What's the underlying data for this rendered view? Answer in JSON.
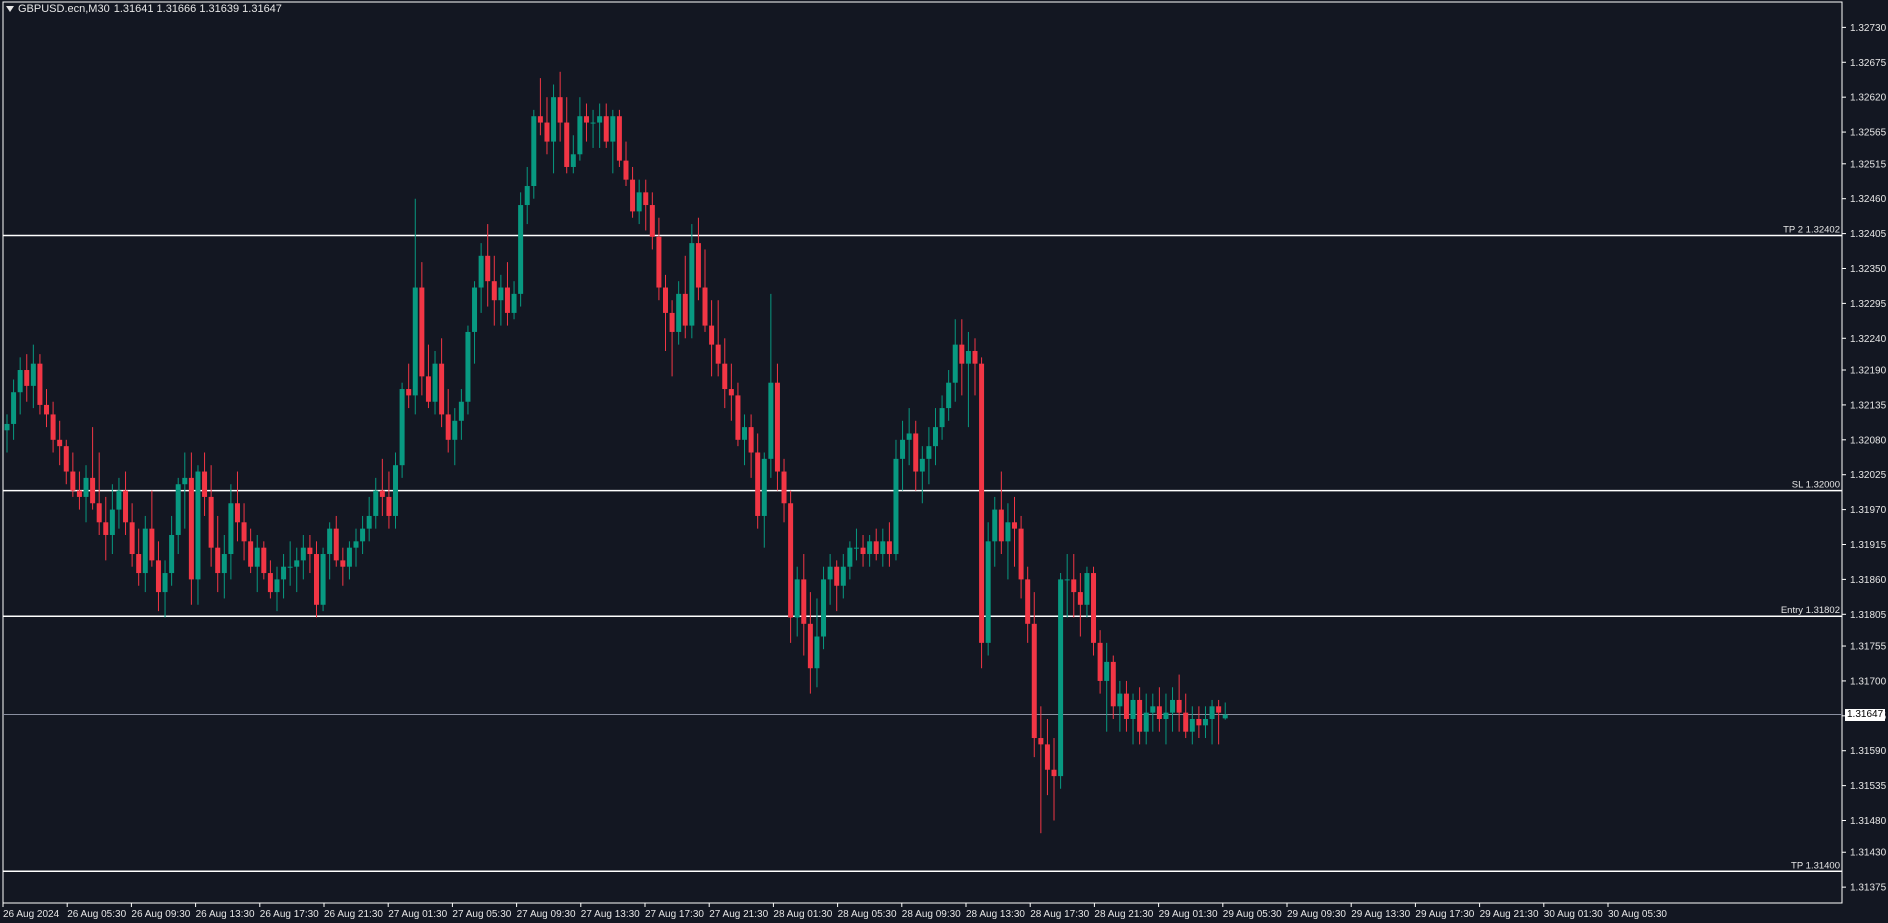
{
  "header": {
    "symbol": "GBPUSD.ecn,M30",
    "ohlc": "1.31641 1.31666 1.31639 1.31647"
  },
  "current_price_label": "1.31647",
  "colors": {
    "background": "#131722",
    "axis": "#ffffff",
    "bull": "#089981",
    "bear": "#f23645",
    "level_line": "#ffffff",
    "text": "#e6e6e6"
  },
  "chart_data": {
    "type": "candlestick",
    "symbol": "GBPUSD.ecn",
    "timeframe": "M30",
    "ylim": [
      1.3135,
      1.3277
    ],
    "y_ticks": [
      "1.32730",
      "1.32675",
      "1.32620",
      "1.32565",
      "1.32515",
      "1.32460",
      "1.32405",
      "1.32350",
      "1.32295",
      "1.32240",
      "1.32190",
      "1.32135",
      "1.32080",
      "1.32025",
      "1.31970",
      "1.31915",
      "1.31860",
      "1.31805",
      "1.31755",
      "1.31700",
      "1.31645",
      "1.31590",
      "1.31535",
      "1.31480",
      "1.31430",
      "1.31375"
    ],
    "x_ticks": [
      "26 Aug 2024",
      "26 Aug 05:30",
      "26 Aug 09:30",
      "26 Aug 13:30",
      "26 Aug 17:30",
      "26 Aug 21:30",
      "27 Aug 01:30",
      "27 Aug 05:30",
      "27 Aug 09:30",
      "27 Aug 13:30",
      "27 Aug 17:30",
      "27 Aug 21:30",
      "28 Aug 01:30",
      "28 Aug 05:30",
      "28 Aug 09:30",
      "28 Aug 13:30",
      "28 Aug 17:30",
      "28 Aug 21:30",
      "29 Aug 01:30",
      "29 Aug 05:30",
      "29 Aug 09:30",
      "29 Aug 13:30",
      "29 Aug 17:30",
      "29 Aug 21:30",
      "30 Aug 01:30",
      "30 Aug 05:30"
    ],
    "levels": [
      {
        "label": "TP 2 1.32402",
        "price": 1.32402
      },
      {
        "label": "SL 1.32000",
        "price": 1.32
      },
      {
        "label": "Entry 1.31802",
        "price": 1.31802
      },
      {
        "label": "TP 1.31400",
        "price": 1.314
      }
    ],
    "current_price": 1.31647,
    "ohlc": [
      [
        1.32095,
        1.3212,
        1.3206,
        1.32105
      ],
      [
        1.32105,
        1.32175,
        1.3208,
        1.32155
      ],
      [
        1.32155,
        1.3221,
        1.3212,
        1.3219
      ],
      [
        1.3219,
        1.32215,
        1.3214,
        1.32165
      ],
      [
        1.32165,
        1.3223,
        1.3213,
        1.322
      ],
      [
        1.322,
        1.32215,
        1.3212,
        1.32135
      ],
      [
        1.32135,
        1.3216,
        1.321,
        1.3212
      ],
      [
        1.3212,
        1.3214,
        1.3206,
        1.3208
      ],
      [
        1.3208,
        1.3211,
        1.3204,
        1.3207
      ],
      [
        1.3207,
        1.3208,
        1.3201,
        1.3203
      ],
      [
        1.3203,
        1.3206,
        1.3199,
        1.32
      ],
      [
        1.32,
        1.3203,
        1.3197,
        1.3199
      ],
      [
        1.3199,
        1.3204,
        1.3195,
        1.3202
      ],
      [
        1.3202,
        1.321,
        1.3197,
        1.3198
      ],
      [
        1.3198,
        1.3206,
        1.3193,
        1.3195
      ],
      [
        1.3195,
        1.3199,
        1.3189,
        1.3193
      ],
      [
        1.3193,
        1.3201,
        1.319,
        1.3197
      ],
      [
        1.3197,
        1.3202,
        1.3194,
        1.32
      ],
      [
        1.32,
        1.3203,
        1.3193,
        1.3195
      ],
      [
        1.3195,
        1.3198,
        1.3188,
        1.319
      ],
      [
        1.319,
        1.3194,
        1.3185,
        1.3187
      ],
      [
        1.3187,
        1.3196,
        1.3184,
        1.3194
      ],
      [
        1.3194,
        1.32,
        1.3188,
        1.3189
      ],
      [
        1.3189,
        1.3192,
        1.3181,
        1.3184
      ],
      [
        1.3184,
        1.3189,
        1.318,
        1.3187
      ],
      [
        1.3187,
        1.3196,
        1.3185,
        1.3193
      ],
      [
        1.3193,
        1.3202,
        1.319,
        1.3201
      ],
      [
        1.3201,
        1.3206,
        1.3194,
        1.3202
      ],
      [
        1.3202,
        1.3206,
        1.3182,
        1.3186
      ],
      [
        1.3186,
        1.3204,
        1.3182,
        1.3203
      ],
      [
        1.3203,
        1.3206,
        1.3196,
        1.3199
      ],
      [
        1.3199,
        1.3204,
        1.3188,
        1.3191
      ],
      [
        1.3191,
        1.3196,
        1.3184,
        1.3187
      ],
      [
        1.3187,
        1.3193,
        1.3183,
        1.319
      ],
      [
        1.319,
        1.3201,
        1.3186,
        1.3198
      ],
      [
        1.3198,
        1.3203,
        1.3192,
        1.3195
      ],
      [
        1.3195,
        1.3198,
        1.3189,
        1.3192
      ],
      [
        1.3192,
        1.3194,
        1.3187,
        1.3188
      ],
      [
        1.3188,
        1.3193,
        1.3184,
        1.3191
      ],
      [
        1.3191,
        1.3192,
        1.3186,
        1.3187
      ],
      [
        1.3187,
        1.3189,
        1.3183,
        1.3184
      ],
      [
        1.3184,
        1.3188,
        1.3181,
        1.3186
      ],
      [
        1.3186,
        1.319,
        1.3183,
        1.3188
      ],
      [
        1.3188,
        1.3192,
        1.3185,
        1.3188
      ],
      [
        1.3188,
        1.3191,
        1.3184,
        1.3189
      ],
      [
        1.3189,
        1.3193,
        1.3186,
        1.3191
      ],
      [
        1.3191,
        1.3193,
        1.3187,
        1.319
      ],
      [
        1.319,
        1.3192,
        1.318,
        1.3182
      ],
      [
        1.3182,
        1.3191,
        1.3181,
        1.319
      ],
      [
        1.319,
        1.3195,
        1.3186,
        1.3194
      ],
      [
        1.3194,
        1.3196,
        1.3188,
        1.3189
      ],
      [
        1.3189,
        1.3191,
        1.3185,
        1.3188
      ],
      [
        1.3188,
        1.3192,
        1.3186,
        1.3191
      ],
      [
        1.3191,
        1.3194,
        1.3188,
        1.3192
      ],
      [
        1.3192,
        1.3196,
        1.319,
        1.3194
      ],
      [
        1.3194,
        1.3199,
        1.3192,
        1.3196
      ],
      [
        1.3196,
        1.3202,
        1.3194,
        1.32
      ],
      [
        1.32,
        1.3205,
        1.3196,
        1.3199
      ],
      [
        1.3199,
        1.3203,
        1.3194,
        1.3196
      ],
      [
        1.3196,
        1.3206,
        1.3194,
        1.3204
      ],
      [
        1.3204,
        1.3217,
        1.3202,
        1.3216
      ],
      [
        1.3216,
        1.322,
        1.3213,
        1.3215
      ],
      [
        1.3215,
        1.3246,
        1.3212,
        1.3232
      ],
      [
        1.3232,
        1.3236,
        1.3215,
        1.3218
      ],
      [
        1.3218,
        1.3223,
        1.3213,
        1.3214
      ],
      [
        1.3214,
        1.3222,
        1.3212,
        1.322
      ],
      [
        1.322,
        1.3224,
        1.321,
        1.3212
      ],
      [
        1.3212,
        1.3216,
        1.3206,
        1.3208
      ],
      [
        1.3208,
        1.3213,
        1.3204,
        1.3211
      ],
      [
        1.3211,
        1.3216,
        1.3208,
        1.3214
      ],
      [
        1.3214,
        1.3226,
        1.3212,
        1.3225
      ],
      [
        1.3225,
        1.3233,
        1.322,
        1.3232
      ],
      [
        1.3232,
        1.3239,
        1.3228,
        1.3237
      ],
      [
        1.3237,
        1.3242,
        1.3229,
        1.3233
      ],
      [
        1.3233,
        1.3237,
        1.3226,
        1.323
      ],
      [
        1.323,
        1.3234,
        1.3226,
        1.3232
      ],
      [
        1.3232,
        1.3236,
        1.3226,
        1.3228
      ],
      [
        1.3228,
        1.3233,
        1.3227,
        1.3231
      ],
      [
        1.3231,
        1.3247,
        1.3229,
        1.3245
      ],
      [
        1.3245,
        1.3251,
        1.3242,
        1.3248
      ],
      [
        1.3248,
        1.326,
        1.3246,
        1.3259
      ],
      [
        1.3259,
        1.3265,
        1.3256,
        1.3258
      ],
      [
        1.3258,
        1.3262,
        1.3253,
        1.3255
      ],
      [
        1.3255,
        1.3264,
        1.325,
        1.3262
      ],
      [
        1.3262,
        1.3266,
        1.3255,
        1.3258
      ],
      [
        1.3258,
        1.3262,
        1.325,
        1.3251
      ],
      [
        1.3251,
        1.3256,
        1.325,
        1.3253
      ],
      [
        1.3253,
        1.3262,
        1.3252,
        1.3259
      ],
      [
        1.3259,
        1.3261,
        1.3255,
        1.3258
      ],
      [
        1.3258,
        1.326,
        1.3254,
        1.3258
      ],
      [
        1.3258,
        1.3261,
        1.3254,
        1.3259
      ],
      [
        1.3259,
        1.3261,
        1.3254,
        1.3255
      ],
      [
        1.3255,
        1.326,
        1.325,
        1.3259
      ],
      [
        1.3259,
        1.326,
        1.3251,
        1.3252
      ],
      [
        1.3252,
        1.3255,
        1.3248,
        1.3249
      ],
      [
        1.3249,
        1.3251,
        1.3243,
        1.3244
      ],
      [
        1.3244,
        1.3249,
        1.3242,
        1.3247
      ],
      [
        1.3247,
        1.3249,
        1.3241,
        1.3245
      ],
      [
        1.3245,
        1.3247,
        1.3238,
        1.324
      ],
      [
        1.324,
        1.3243,
        1.323,
        1.3232
      ],
      [
        1.3232,
        1.3234,
        1.3222,
        1.3228
      ],
      [
        1.3228,
        1.323,
        1.3218,
        1.3225
      ],
      [
        1.3225,
        1.3233,
        1.3223,
        1.3231
      ],
      [
        1.3231,
        1.3237,
        1.3224,
        1.3226
      ],
      [
        1.3226,
        1.3242,
        1.3224,
        1.3239
      ],
      [
        1.3239,
        1.3243,
        1.323,
        1.3232
      ],
      [
        1.3232,
        1.3238,
        1.3225,
        1.3226
      ],
      [
        1.3226,
        1.323,
        1.3218,
        1.3223
      ],
      [
        1.3223,
        1.323,
        1.3218,
        1.322
      ],
      [
        1.322,
        1.3224,
        1.3213,
        1.3216
      ],
      [
        1.3216,
        1.322,
        1.3211,
        1.3215
      ],
      [
        1.3215,
        1.3217,
        1.3207,
        1.3208
      ],
      [
        1.3208,
        1.3212,
        1.3204,
        1.321
      ],
      [
        1.321,
        1.3212,
        1.3202,
        1.3206
      ],
      [
        1.3206,
        1.3209,
        1.3194,
        1.3196
      ],
      [
        1.3196,
        1.3206,
        1.3191,
        1.3205
      ],
      [
        1.3205,
        1.3231,
        1.3202,
        1.3217
      ],
      [
        1.3217,
        1.322,
        1.32,
        1.3203
      ],
      [
        1.3203,
        1.3205,
        1.3195,
        1.3198
      ],
      [
        1.3198,
        1.32,
        1.3176,
        1.318
      ],
      [
        1.318,
        1.3188,
        1.3177,
        1.3186
      ],
      [
        1.3186,
        1.319,
        1.3174,
        1.3179
      ],
      [
        1.3179,
        1.3184,
        1.3168,
        1.3172
      ],
      [
        1.3172,
        1.3183,
        1.3169,
        1.3177
      ],
      [
        1.3177,
        1.3188,
        1.3175,
        1.3186
      ],
      [
        1.3186,
        1.319,
        1.3182,
        1.3188
      ],
      [
        1.3188,
        1.3189,
        1.3181,
        1.3185
      ],
      [
        1.3185,
        1.319,
        1.3183,
        1.3188
      ],
      [
        1.3188,
        1.3192,
        1.3186,
        1.3191
      ],
      [
        1.3191,
        1.3194,
        1.3189,
        1.3191
      ],
      [
        1.3191,
        1.3193,
        1.3188,
        1.319
      ],
      [
        1.319,
        1.3193,
        1.3188,
        1.3192
      ],
      [
        1.3192,
        1.3194,
        1.3189,
        1.319
      ],
      [
        1.319,
        1.3194,
        1.3188,
        1.3192
      ],
      [
        1.3192,
        1.3195,
        1.3188,
        1.319
      ],
      [
        1.319,
        1.3208,
        1.3189,
        1.3205
      ],
      [
        1.3205,
        1.3211,
        1.32,
        1.3208
      ],
      [
        1.3208,
        1.3213,
        1.3204,
        1.3209
      ],
      [
        1.3209,
        1.3211,
        1.32,
        1.3203
      ],
      [
        1.3203,
        1.3207,
        1.3198,
        1.3205
      ],
      [
        1.3205,
        1.321,
        1.3201,
        1.3207
      ],
      [
        1.3207,
        1.3213,
        1.3204,
        1.321
      ],
      [
        1.321,
        1.3215,
        1.3208,
        1.3213
      ],
      [
        1.3213,
        1.3219,
        1.3211,
        1.3217
      ],
      [
        1.3217,
        1.3227,
        1.3214,
        1.3223
      ],
      [
        1.3223,
        1.3227,
        1.3215,
        1.322
      ],
      [
        1.322,
        1.3225,
        1.321,
        1.3222
      ],
      [
        1.3222,
        1.3224,
        1.3215,
        1.322
      ],
      [
        1.322,
        1.3221,
        1.3172,
        1.3176
      ],
      [
        1.3176,
        1.3195,
        1.3174,
        1.3192
      ],
      [
        1.3192,
        1.3199,
        1.3188,
        1.3197
      ],
      [
        1.3197,
        1.3203,
        1.319,
        1.3192
      ],
      [
        1.3192,
        1.3198,
        1.3186,
        1.3195
      ],
      [
        1.3195,
        1.3199,
        1.3188,
        1.3194
      ],
      [
        1.3194,
        1.3196,
        1.3183,
        1.3186
      ],
      [
        1.3186,
        1.3188,
        1.3176,
        1.3179
      ],
      [
        1.3179,
        1.3184,
        1.3158,
        1.3161
      ],
      [
        1.3161,
        1.3166,
        1.3146,
        1.316
      ],
      [
        1.316,
        1.3164,
        1.3152,
        1.3156
      ],
      [
        1.3156,
        1.3161,
        1.3148,
        1.3155
      ],
      [
        1.3155,
        1.3187,
        1.3153,
        1.3186
      ],
      [
        1.3186,
        1.319,
        1.318,
        1.3186
      ],
      [
        1.3186,
        1.319,
        1.318,
        1.3184
      ],
      [
        1.3184,
        1.3187,
        1.3177,
        1.3182
      ],
      [
        1.3182,
        1.3188,
        1.318,
        1.3187
      ],
      [
        1.3187,
        1.3188,
        1.3174,
        1.3176
      ],
      [
        1.3176,
        1.3178,
        1.3168,
        1.317
      ],
      [
        1.317,
        1.3176,
        1.3162,
        1.3173
      ],
      [
        1.3173,
        1.3174,
        1.3164,
        1.3166
      ],
      [
        1.3166,
        1.317,
        1.3162,
        1.3168
      ],
      [
        1.3168,
        1.317,
        1.3162,
        1.3164
      ],
      [
        1.3164,
        1.3168,
        1.316,
        1.3167
      ],
      [
        1.3167,
        1.3169,
        1.316,
        1.3162
      ],
      [
        1.3162,
        1.3168,
        1.316,
        1.3165
      ],
      [
        1.3165,
        1.3168,
        1.3162,
        1.3166
      ],
      [
        1.3166,
        1.3169,
        1.3162,
        1.3164
      ],
      [
        1.3164,
        1.3168,
        1.316,
        1.3165
      ],
      [
        1.3165,
        1.3169,
        1.3162,
        1.3167
      ],
      [
        1.3167,
        1.3171,
        1.3162,
        1.3165
      ],
      [
        1.3165,
        1.3168,
        1.3161,
        1.3162
      ],
      [
        1.3162,
        1.3166,
        1.316,
        1.3164
      ],
      [
        1.3164,
        1.3166,
        1.3161,
        1.3163
      ],
      [
        1.3163,
        1.3166,
        1.3161,
        1.3164
      ],
      [
        1.3164,
        1.3167,
        1.316,
        1.3166
      ],
      [
        1.3166,
        1.3167,
        1.316,
        1.3165
      ],
      [
        1.31641,
        1.31666,
        1.31639,
        1.31647
      ]
    ]
  }
}
